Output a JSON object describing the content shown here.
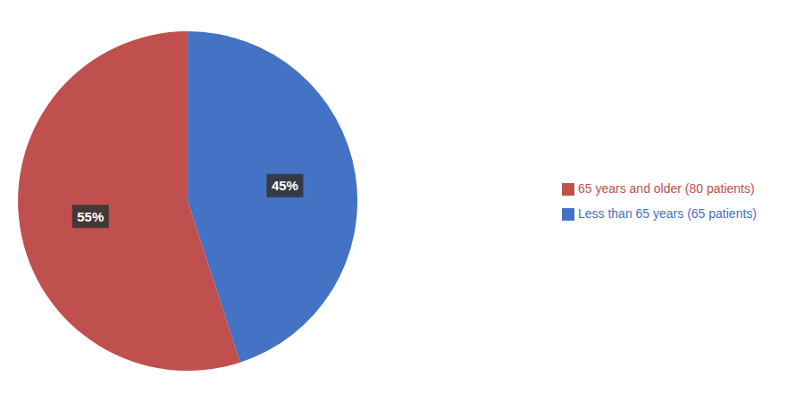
{
  "chart_data": {
    "type": "pie",
    "categories": [
      "Less than 65 years (65 patients)",
      "65 years and older (80 patients)"
    ],
    "values": [
      45,
      55
    ],
    "value_labels": [
      "45%",
      "55%"
    ],
    "colors": [
      "#4472C4",
      "#C0504D"
    ],
    "data_labels": true,
    "legend": "right"
  }
}
